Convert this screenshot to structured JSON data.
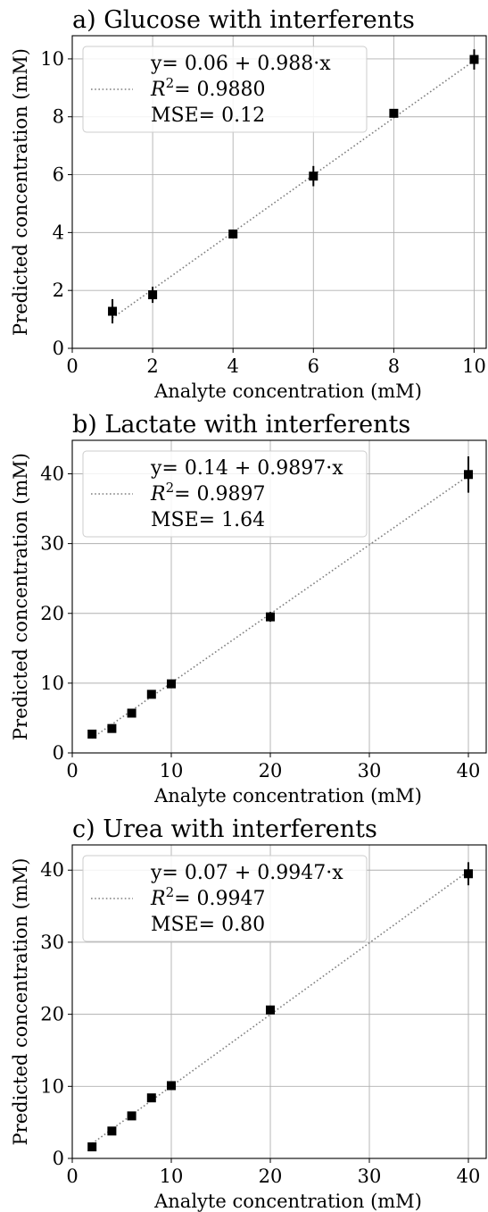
{
  "chart_data": [
    {
      "type": "scatter",
      "title": "a) Glucose with interferents",
      "xlabel": "Analyte concentration  (mM)",
      "ylabel": "Predicted concentration  (mM)",
      "xlim": [
        0,
        10.3
      ],
      "ylim": [
        0,
        10.8
      ],
      "xticks": [
        0,
        2,
        4,
        6,
        8,
        10
      ],
      "yticks": [
        0,
        2,
        4,
        6,
        8,
        10
      ],
      "grid": true,
      "legend_position": "top-left",
      "legend": {
        "equation": "y= 0.06 + 0.988·x",
        "r2_value": "= 0.9880",
        "mse": "MSE= 0.12"
      },
      "fit": {
        "intercept": 0.06,
        "slope": 0.988
      },
      "points": [
        {
          "x": 1,
          "y": 1.28,
          "err": 0.42
        },
        {
          "x": 2,
          "y": 1.85,
          "err": 0.28
        },
        {
          "x": 4,
          "y": 3.95,
          "err": 0.1
        },
        {
          "x": 6,
          "y": 5.95,
          "err": 0.35
        },
        {
          "x": 8,
          "y": 8.12,
          "err": 0.1
        },
        {
          "x": 10,
          "y": 9.98,
          "err": 0.35
        }
      ]
    },
    {
      "type": "scatter",
      "title": "b) Lactate with interferents",
      "xlabel": "Analyte concentration  (mM)",
      "ylabel": "Predicted concentration  (mM)",
      "xlim": [
        0,
        41.8
      ],
      "ylim": [
        0,
        44.8
      ],
      "xticks": [
        0,
        10,
        20,
        30,
        40
      ],
      "yticks": [
        0,
        10,
        20,
        30,
        40
      ],
      "grid": true,
      "legend_position": "top-left",
      "legend": {
        "equation": "y= 0.14 + 0.9897·x",
        "r2_value": "= 0.9897",
        "mse": "MSE= 1.64"
      },
      "fit": {
        "intercept": 0.14,
        "slope": 0.9897
      },
      "points": [
        {
          "x": 2,
          "y": 2.7,
          "err": 0.3
        },
        {
          "x": 4,
          "y": 3.5,
          "err": 0.3
        },
        {
          "x": 6,
          "y": 5.7,
          "err": 0.3
        },
        {
          "x": 8,
          "y": 8.4,
          "err": 0.4
        },
        {
          "x": 10,
          "y": 9.9,
          "err": 0.6
        },
        {
          "x": 20,
          "y": 19.5,
          "err": 0.7
        },
        {
          "x": 40,
          "y": 39.9,
          "err": 2.6
        }
      ]
    },
    {
      "type": "scatter",
      "title": "c) Urea with interferents",
      "xlabel": "Analyte concentration  (mM)",
      "ylabel": "Predicted concentration  (mM)",
      "xlim": [
        0,
        41.8
      ],
      "ylim": [
        0,
        43.5
      ],
      "xticks": [
        0,
        10,
        20,
        30,
        40
      ],
      "yticks": [
        0,
        10,
        20,
        30,
        40
      ],
      "grid": true,
      "legend_position": "top-left",
      "legend": {
        "equation": "y= 0.07 + 0.9947·x",
        "r2_value": "= 0.9947",
        "mse": "MSE= 0.80"
      },
      "fit": {
        "intercept": 0.07,
        "slope": 0.9947
      },
      "points": [
        {
          "x": 2,
          "y": 1.6,
          "err": 0.5
        },
        {
          "x": 4,
          "y": 3.8,
          "err": 0.3
        },
        {
          "x": 6,
          "y": 5.9,
          "err": 0.3
        },
        {
          "x": 8,
          "y": 8.4,
          "err": 0.5
        },
        {
          "x": 10,
          "y": 10.1,
          "err": 0.3
        },
        {
          "x": 20,
          "y": 20.6,
          "err": 0.6
        },
        {
          "x": 40,
          "y": 39.5,
          "err": 1.6
        }
      ]
    }
  ]
}
